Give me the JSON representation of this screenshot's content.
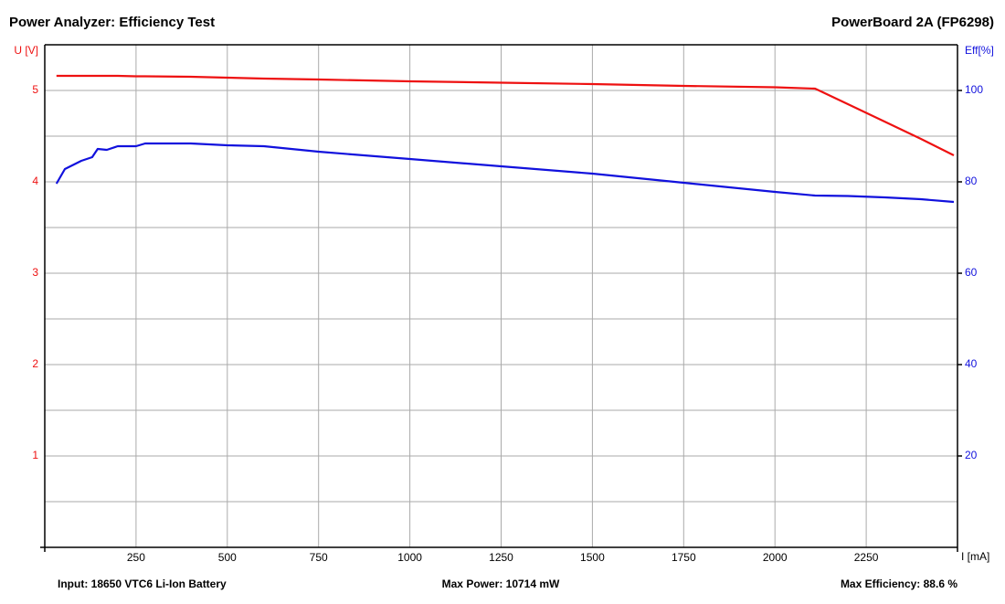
{
  "chart_data": {
    "type": "line",
    "title": "Power Analyzer: Efficiency Test",
    "subtitle": "PowerBoard 2A (FP6298)",
    "xlabel": "I [mA]",
    "ylabel": "U [V]",
    "y2label": "Eff[%]",
    "footer": [
      "Input: 18650 VTC6 Li-Ion Battery",
      "Max Power: 10714 mW",
      "Max Efficiency: 88.6 %"
    ],
    "x": [
      32,
      55,
      100,
      130,
      145,
      170,
      200,
      250,
      275,
      400,
      500,
      600,
      750,
      1000,
      1250,
      1500,
      1750,
      2000,
      2110,
      2200,
      2300,
      2400,
      2490
    ],
    "series": [
      {
        "color": "#ee1111",
        "axis": "y",
        "values": [
          5.16,
          5.16,
          5.16,
          5.16,
          5.16,
          5.16,
          5.16,
          5.155,
          5.155,
          5.15,
          5.14,
          5.13,
          5.12,
          5.1,
          5.085,
          5.07,
          5.05,
          5.035,
          5.02,
          4.85,
          4.66,
          4.47,
          4.29
        ]
      },
      {
        "color": "#1111dd",
        "axis": "y2",
        "values": [
          79.6,
          82.8,
          84.6,
          85.4,
          87.2,
          87,
          87.8,
          87.8,
          88.4,
          88.4,
          88,
          87.8,
          86.6,
          85,
          83.4,
          81.8,
          79.8,
          77.8,
          77,
          76.9,
          76.6,
          76.2,
          75.6
        ]
      }
    ],
    "xlim": [
      0,
      2500
    ],
    "xticks": [
      250,
      500,
      750,
      1000,
      1250,
      1500,
      1750,
      2000,
      2250
    ],
    "ylim": [
      0,
      5.5
    ],
    "yticks": [
      1,
      2,
      3,
      4,
      5
    ],
    "ygrid": [
      0.5,
      1.5,
      2.5,
      3.5,
      4.5
    ],
    "y2lim": [
      0,
      110
    ],
    "y2ticks": [
      20,
      40,
      60,
      80,
      100
    ],
    "grid": true
  }
}
